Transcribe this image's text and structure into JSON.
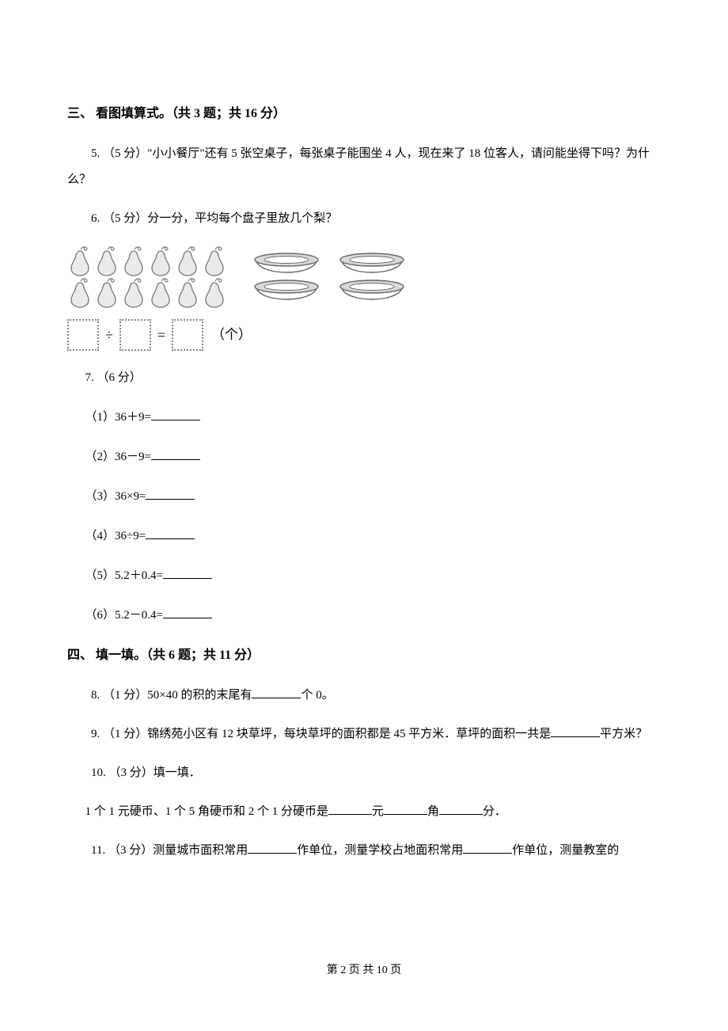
{
  "section3": {
    "title": "三、 看图填算式。（共 3 题；共 16 分）",
    "q5": "5. （5 分）\"小小餐厅\"还有 5 张空桌子，每张桌子能围坐 4 人，现在来了 18 位客人，请问能坐得下吗？为什么？",
    "q6": {
      "stem": "6. （5 分）分一分，平均每个盘子里放几个梨？",
      "unit": "（个）",
      "div": "÷",
      "eq": "="
    },
    "q7": {
      "stem": "7. （6 分）",
      "items": [
        "（1）36＋9=",
        "（2）36－9=",
        "（3）36×9=",
        "（4）36÷9=",
        "（5）5.2＋0.4=",
        "（6）5.2－0.4="
      ]
    }
  },
  "section4": {
    "title": "四、 填一填。（共 6 题；共 11 分）",
    "q8_pre": "8. （1 分）50×40 的积的末尾有",
    "q8_post": "个 0。",
    "q9_pre": "9. （1 分）锦绣苑小区有 12 块草坪，每块草坪的面积都是 45 平方米．草坪的面积一共是",
    "q9_post": "平方米？",
    "q10_stem": "10. （3 分）填一填．",
    "q10_line_a": "1 个 1 元硬币、1 个 5 角硬币和 2 个 1 分硬币是",
    "q10_yuan": "元",
    "q10_jiao": "角",
    "q10_fen": "分．",
    "q11_a": "11. （3 分）测量城市面积常用",
    "q11_b": "作单位，测量学校占地面积常用",
    "q11_c": "作单位，测量教室的"
  },
  "footer": {
    "a": "第 ",
    "page": "2",
    "b": " 页 共 ",
    "total": "10",
    "c": " 页"
  },
  "svg": {
    "pear_stroke": "#777777",
    "pear_fill": "#eaeaea",
    "bowl_stroke": "#666666",
    "bowl_fill": "#d9d9d9"
  }
}
